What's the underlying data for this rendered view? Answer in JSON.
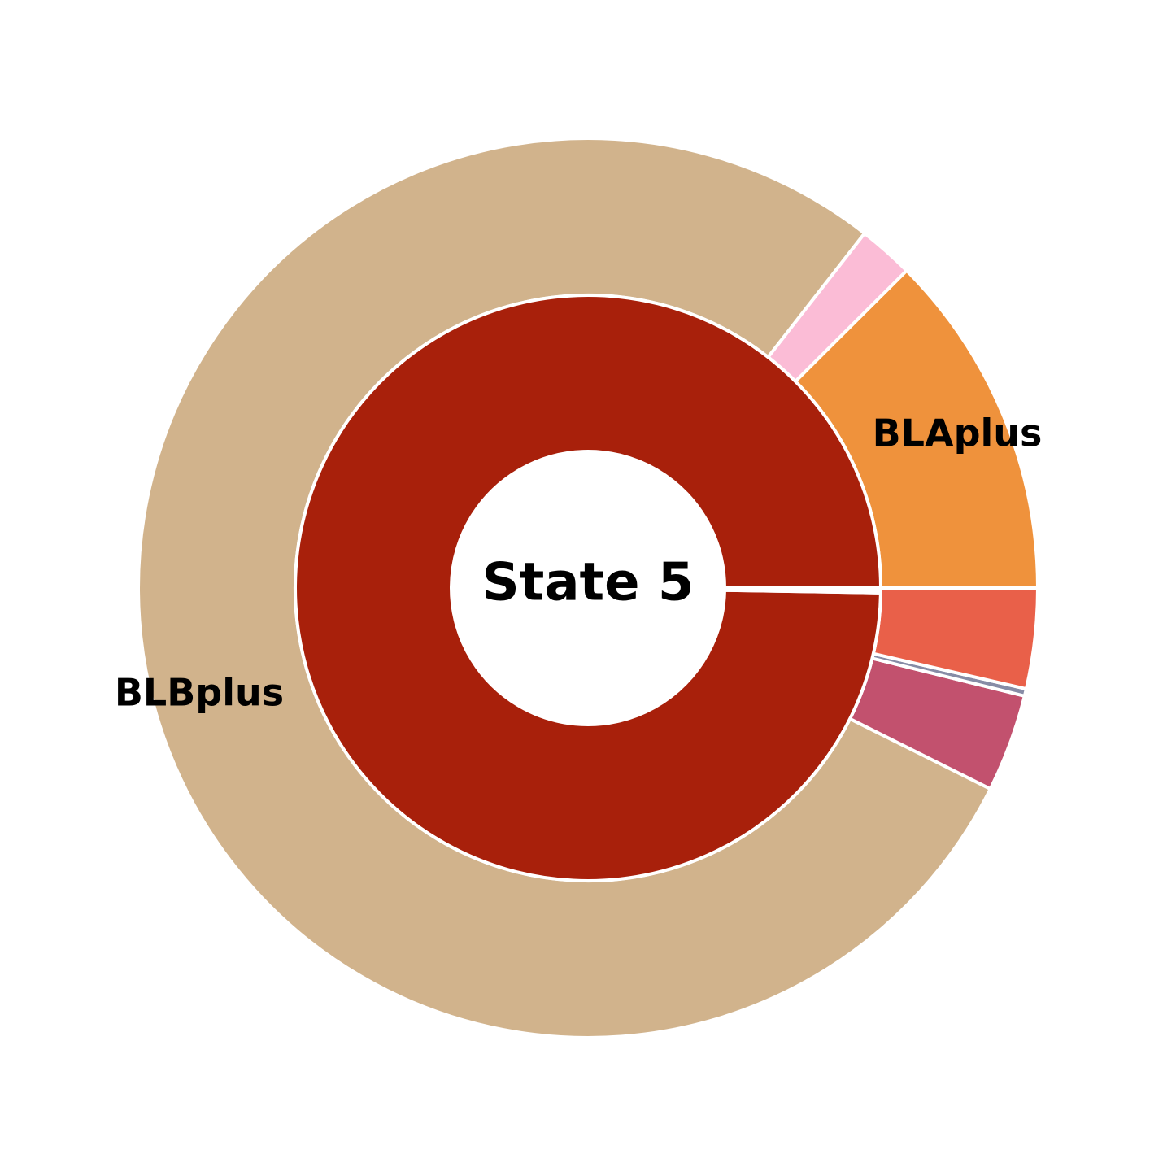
{
  "chart_data": {
    "type": "pie",
    "subtype": "nested-donut",
    "title": "State 5",
    "inner_ring": {
      "slices": [
        {
          "name": "State 5",
          "value": 99.74,
          "color": "#a8200b"
        },
        {
          "name": "",
          "value": 0.26,
          "color": "#ffffff"
        }
      ]
    },
    "outer_ring": {
      "slices": [
        {
          "name": "BLAplus",
          "value": 12.47,
          "color": "#ef923c"
        },
        {
          "name": "",
          "value": 1.99,
          "color": "#fbbcd6"
        },
        {
          "name": "BLBplus",
          "value": 78.17,
          "color": "#d1b38c"
        },
        {
          "name": "",
          "value": 3.51,
          "color": "#c2516e"
        },
        {
          "name": "",
          "value": 0.26,
          "color": "#878ca6"
        },
        {
          "name": "",
          "value": 3.6,
          "color": "#e96049"
        }
      ]
    },
    "labels": [
      {
        "text": "BLAplus",
        "slice": "BLAplus"
      },
      {
        "text": "BLBplus",
        "slice": "BLBplus"
      }
    ],
    "center_label": "State 5",
    "start_angle_deg": 0,
    "direction": "counterclockwise"
  }
}
